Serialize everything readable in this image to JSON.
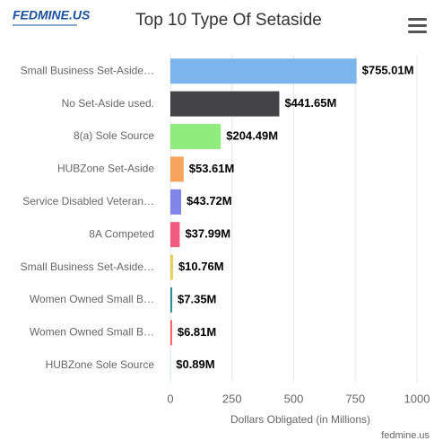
{
  "logo": "FEDMINE.US",
  "credit": "fedmine.us",
  "chart_data": {
    "type": "bar",
    "orientation": "horizontal",
    "title": "Top 10 Type Of Setaside",
    "x_label": "Dollars Obligated (in Millions)",
    "categories": [
      "Small Business Set-Aside…",
      "No Set-Aside used.",
      "8(a) Sole Source",
      "HUBZone Set-Aside",
      "Service Disabled Veteran…",
      "8A Competed",
      "Small Business Set-Aside…",
      "Women Owned Small B…",
      "Women Owned Small B…",
      "HUBZone Sole Source"
    ],
    "values": [
      755.01,
      441.65,
      204.49,
      53.61,
      43.72,
      37.99,
      10.76,
      7.35,
      6.81,
      0.89
    ],
    "value_labels": [
      "$755.01M",
      "$441.65M",
      "$204.49M",
      "$53.61M",
      "$43.72M",
      "$37.99M",
      "$10.76M",
      "$7.35M",
      "$6.81M",
      "$0.89M"
    ],
    "colors": [
      "#7cb5ec",
      "#434348",
      "#90ed7d",
      "#f7a35c",
      "#8085e9",
      "#f15c80",
      "#e4d354",
      "#2b908f",
      "#f45b5b",
      "#91e8e1"
    ],
    "xlim": [
      0,
      1000
    ],
    "xticks": [
      0,
      250,
      500,
      750,
      1000
    ],
    "grid": true
  }
}
